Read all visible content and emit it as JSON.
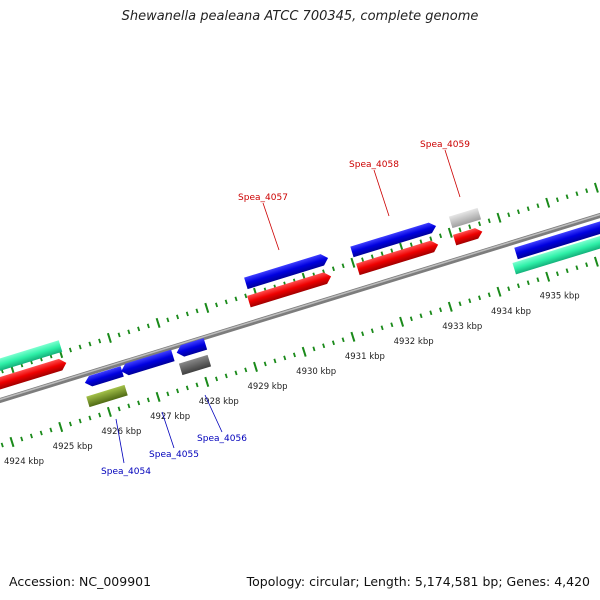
{
  "title": "Shewanella pealeana ATCC 700345, complete genome",
  "footer": {
    "accession": "Accession: NC_009901",
    "summary": "Topology: circular; Length: 5,174,581 bp; Genes: 4,420"
  },
  "colors": {
    "backbone": "#8c8c8c",
    "tick": "#1a8a1a",
    "forward_label": "#cc0000",
    "reverse_label": "#0000bb"
  },
  "scale_unit": "kbp",
  "kbp_ticks": [
    {
      "kbp": 4924,
      "label": "4924 kbp"
    },
    {
      "kbp": 4925,
      "label": "4925 kbp"
    },
    {
      "kbp": 4926,
      "label": "4926 kbp"
    },
    {
      "kbp": 4927,
      "label": "4927 kbp"
    },
    {
      "kbp": 4928,
      "label": "4928 kbp"
    },
    {
      "kbp": 4929,
      "label": "4929 kbp"
    },
    {
      "kbp": 4930,
      "label": "4930 kbp"
    },
    {
      "kbp": 4931,
      "label": "4931 kbp"
    },
    {
      "kbp": 4932,
      "label": "4932 kbp"
    },
    {
      "kbp": 4933,
      "label": "4933 kbp"
    },
    {
      "kbp": 4934,
      "label": "4934 kbp"
    },
    {
      "kbp": 4935,
      "label": "4935 kbp"
    }
  ],
  "gene_labels": [
    {
      "name": "Spea_4054",
      "strand": "reverse"
    },
    {
      "name": "Spea_4055",
      "strand": "reverse"
    },
    {
      "name": "Spea_4056",
      "strand": "reverse"
    },
    {
      "name": "Spea_4057",
      "strand": "forward"
    },
    {
      "name": "Spea_4058",
      "strand": "forward"
    },
    {
      "name": "Spea_4059",
      "strand": "forward"
    }
  ]
}
